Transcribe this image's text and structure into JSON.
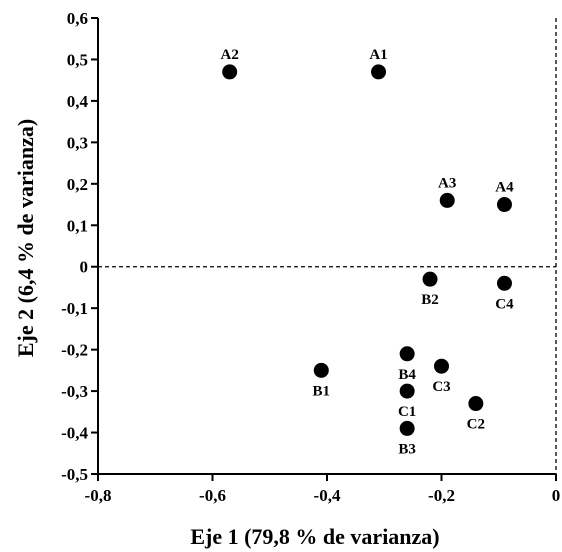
{
  "chart_data": {
    "type": "scatter",
    "title": "",
    "xlabel": "Eje 1 (79,8 % de varianza)",
    "ylabel": "Eje 2 (6,4 % de varianza)",
    "xlim": [
      -0.8,
      0
    ],
    "ylim": [
      -0.5,
      0.6
    ],
    "x_ticks": [
      -0.8,
      -0.6,
      -0.4,
      -0.2,
      0
    ],
    "x_tick_labels": [
      "-0,8",
      "-0,6",
      "-0,4",
      "-0,2",
      "0"
    ],
    "y_ticks": [
      0.6,
      0.5,
      0.4,
      0.3,
      0.2,
      0.1,
      0,
      -0.1,
      -0.2,
      -0.3,
      -0.4,
      -0.5
    ],
    "y_tick_labels": [
      "0,6",
      "0,5",
      "0,4",
      "0,3",
      "0,2",
      "0,1",
      "0",
      "-0,1",
      "-0,2",
      "-0,3",
      "-0,4",
      "-0,5"
    ],
    "grid": false,
    "reference_lines": {
      "x": 0,
      "y": 0,
      "style": "dashed"
    },
    "points": [
      {
        "label": "A1",
        "x": -0.31,
        "y": 0.47,
        "label_pos": "above"
      },
      {
        "label": "A2",
        "x": -0.57,
        "y": 0.47,
        "label_pos": "above"
      },
      {
        "label": "A3",
        "x": -0.19,
        "y": 0.16,
        "label_pos": "above"
      },
      {
        "label": "A4",
        "x": -0.09,
        "y": 0.15,
        "label_pos": "above"
      },
      {
        "label": "B1",
        "x": -0.41,
        "y": -0.25,
        "label_pos": "below"
      },
      {
        "label": "B2",
        "x": -0.22,
        "y": -0.03,
        "label_pos": "below"
      },
      {
        "label": "B3",
        "x": -0.26,
        "y": -0.39,
        "label_pos": "below"
      },
      {
        "label": "B4",
        "x": -0.26,
        "y": -0.21,
        "label_pos": "below"
      },
      {
        "label": "C1",
        "x": -0.26,
        "y": -0.3,
        "label_pos": "below"
      },
      {
        "label": "C2",
        "x": -0.14,
        "y": -0.33,
        "label_pos": "below"
      },
      {
        "label": "C3",
        "x": -0.2,
        "y": -0.24,
        "label_pos": "below"
      },
      {
        "label": "C4",
        "x": -0.09,
        "y": -0.04,
        "label_pos": "below"
      }
    ]
  }
}
